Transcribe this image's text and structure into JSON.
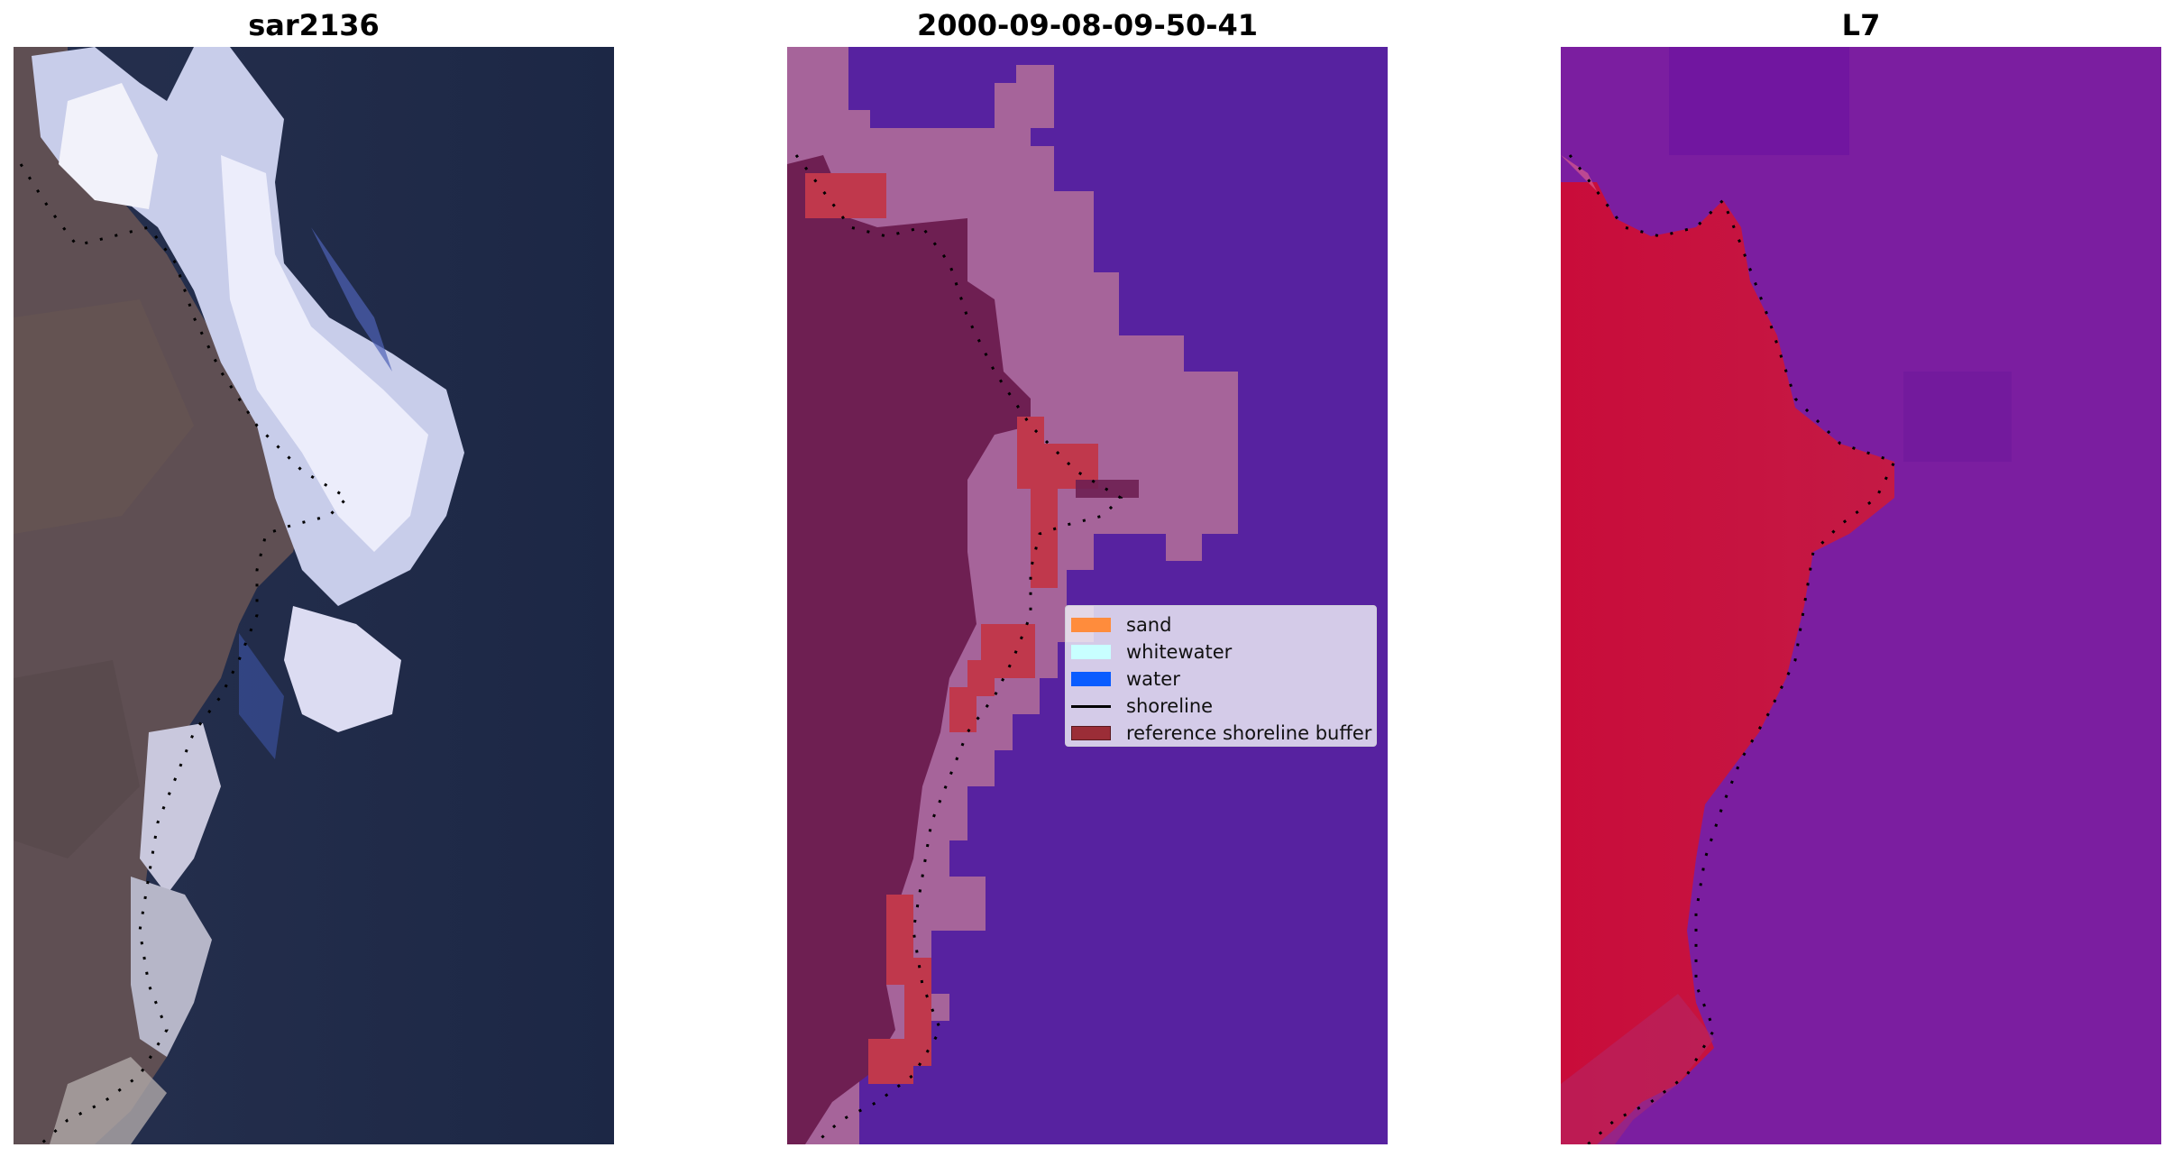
{
  "panels": [
    {
      "title": "sar2136",
      "view": "rgb-image"
    },
    {
      "title": "2000-09-08-09-50-41",
      "view": "classified-image"
    },
    {
      "title": "L7",
      "view": "index-image"
    }
  ],
  "legend": {
    "items": [
      {
        "label": "sand",
        "kind": "patch",
        "color": "#ff8c3c"
      },
      {
        "label": "whitewater",
        "kind": "patch",
        "color": "#c8ffff"
      },
      {
        "label": "water",
        "kind": "patch",
        "color": "#0a5cff"
      },
      {
        "label": "shoreline",
        "kind": "line",
        "color": "#000000"
      },
      {
        "label": "reference shoreline buffer",
        "kind": "patch",
        "color": "#9b2d37"
      }
    ]
  },
  "colors": {
    "sea": "#1e2a4a",
    "land": "#5e4e52",
    "whitewater": "#e6ecff",
    "class_water": "#5722a0",
    "class_sand_overlay": "#a6649a",
    "class_land": "#6e1f52",
    "buffer": "#c0384c",
    "index_land": "#c6143e",
    "index_water": "#7d1ca0"
  }
}
